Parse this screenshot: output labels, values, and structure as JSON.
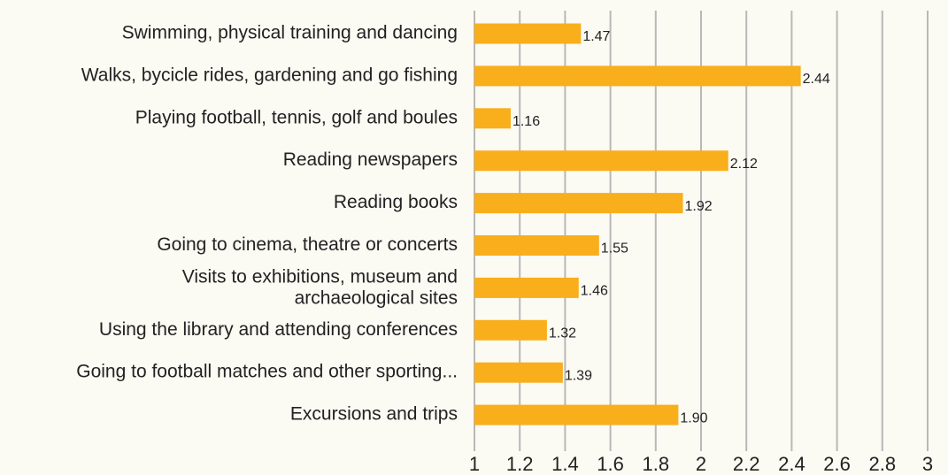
{
  "chart_data": {
    "type": "bar",
    "orientation": "horizontal",
    "categories": [
      "Swimming, physical training and dancing",
      "Walks, bycicle rides, gardening and go fishing",
      "Playing football, tennis, golf and boules",
      "Reading newspapers",
      "Reading books",
      "Going to cinema, theatre or concerts",
      "Visits to exhibitions, museum and\narchaeological sites",
      "Using the library and attending conferences",
      "Going to football matches and other sporting...",
      "Excursions and trips"
    ],
    "values": [
      1.47,
      2.44,
      1.16,
      2.12,
      1.92,
      1.55,
      1.46,
      1.32,
      1.39,
      1.9
    ],
    "value_labels": [
      "1.47",
      "2.44",
      "1.16",
      "2.12",
      "1.92",
      "1.55",
      "1.46",
      "1.32",
      "1.39",
      "1.90"
    ],
    "color": "#f9ae1b",
    "xlim": [
      1,
      3
    ],
    "xticks": [
      1,
      1.2,
      1.4,
      1.6,
      1.8,
      2,
      2.2,
      2.4,
      2.6,
      2.8,
      3
    ],
    "grid": true
  }
}
